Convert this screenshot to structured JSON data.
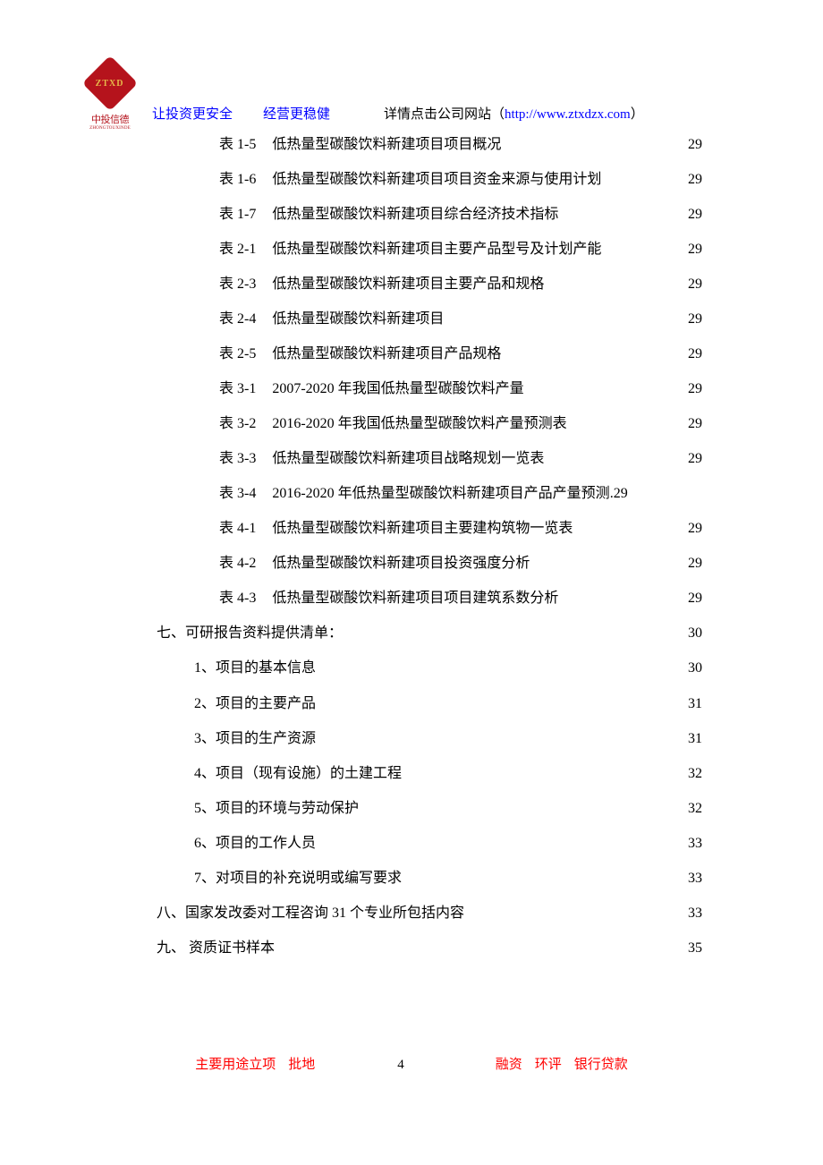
{
  "logo": {
    "inner": "ZTXD",
    "name": "中投信德",
    "sub": "ZHONGTOUXINDE"
  },
  "header": {
    "slogan1": "让投资更安全",
    "slogan2": "经营更稳健",
    "info_prefix": "详情点击公司网站（",
    "url": "http://www.ztxdzx.com",
    "info_suffix": "）"
  },
  "colors": {
    "brand_red": "#b5131c",
    "link_blue": "#0000ff",
    "footer_red": "#ff0000",
    "text_black": "#000000",
    "background": "#ffffff"
  },
  "toc_tables": [
    {
      "label": "表 1-5",
      "title": "低热量型碳酸饮料新建项目项目概况",
      "page": "29"
    },
    {
      "label": "表 1-6",
      "title": "低热量型碳酸饮料新建项目项目资金来源与使用计划",
      "page": "29"
    },
    {
      "label": "表 1-7",
      "title": "低热量型碳酸饮料新建项目综合经济技术指标",
      "page": "29"
    },
    {
      "label": "表 2-1",
      "title": "低热量型碳酸饮料新建项目主要产品型号及计划产能",
      "page": "29"
    },
    {
      "label": "表 2-3",
      "title": "低热量型碳酸饮料新建项目主要产品和规格",
      "page": "29"
    },
    {
      "label": "表 2-4",
      "title": "低热量型碳酸饮料新建项目",
      "page": "29"
    },
    {
      "label": "表 2-5",
      "title": "低热量型碳酸饮料新建项目产品规格",
      "page": "29"
    },
    {
      "label": "表 3-1",
      "title": "2007-2020 年我国低热量型碳酸饮料产量 ",
      "page": "29"
    },
    {
      "label": "表 3-2",
      "title": "2016-2020 年我国低热量型碳酸饮料产量预测表 ",
      "page": "29"
    },
    {
      "label": "表 3-3",
      "title": "低热量型碳酸饮料新建项目战略规划一览表",
      "page": "29"
    },
    {
      "label": "表 3-4",
      "title": "2016-2020 年低热量型碳酸饮料新建项目产品产量预测 ",
      "page": "29",
      "tight": true
    },
    {
      "label": "表 4-1",
      "title": "低热量型碳酸饮料新建项目主要建构筑物一览表",
      "page": "29"
    },
    {
      "label": "表 4-2",
      "title": "低热量型碳酸饮料新建项目投资强度分析",
      "page": "29"
    },
    {
      "label": "表 4-3",
      "title": "低热量型碳酸饮料新建项目项目建筑系数分析",
      "page": "29"
    }
  ],
  "toc_sections": [
    {
      "level": 0,
      "title": "七、可研报告资料提供清单：",
      "page": "30"
    },
    {
      "level": 1,
      "title": "1、项目的基本信息",
      "page": "30"
    },
    {
      "level": 1,
      "title": "2、项目的主要产品",
      "page": "31"
    },
    {
      "level": 1,
      "title": "3、项目的生产资源",
      "page": "31"
    },
    {
      "level": 1,
      "title": "4、项目（现有设施）的土建工程",
      "page": "32"
    },
    {
      "level": 1,
      "title": "5、项目的环境与劳动保护",
      "page": "32"
    },
    {
      "level": 1,
      "title": "6、项目的工作人员",
      "page": "33"
    },
    {
      "level": 1,
      "title": "7、对项目的补充说明或编写要求",
      "page": "33"
    },
    {
      "level": 0,
      "title": "八、国家发改委对工程咨询 31 个专业所包括内容",
      "page": "33"
    },
    {
      "level": 0,
      "title": "九、  资质证书样本",
      "page": "35"
    }
  ],
  "footer": {
    "t1": "主要用途立项",
    "t2": "批地",
    "page_no": "4",
    "t3": "融资",
    "t4": "环评",
    "t5": "银行贷款"
  }
}
